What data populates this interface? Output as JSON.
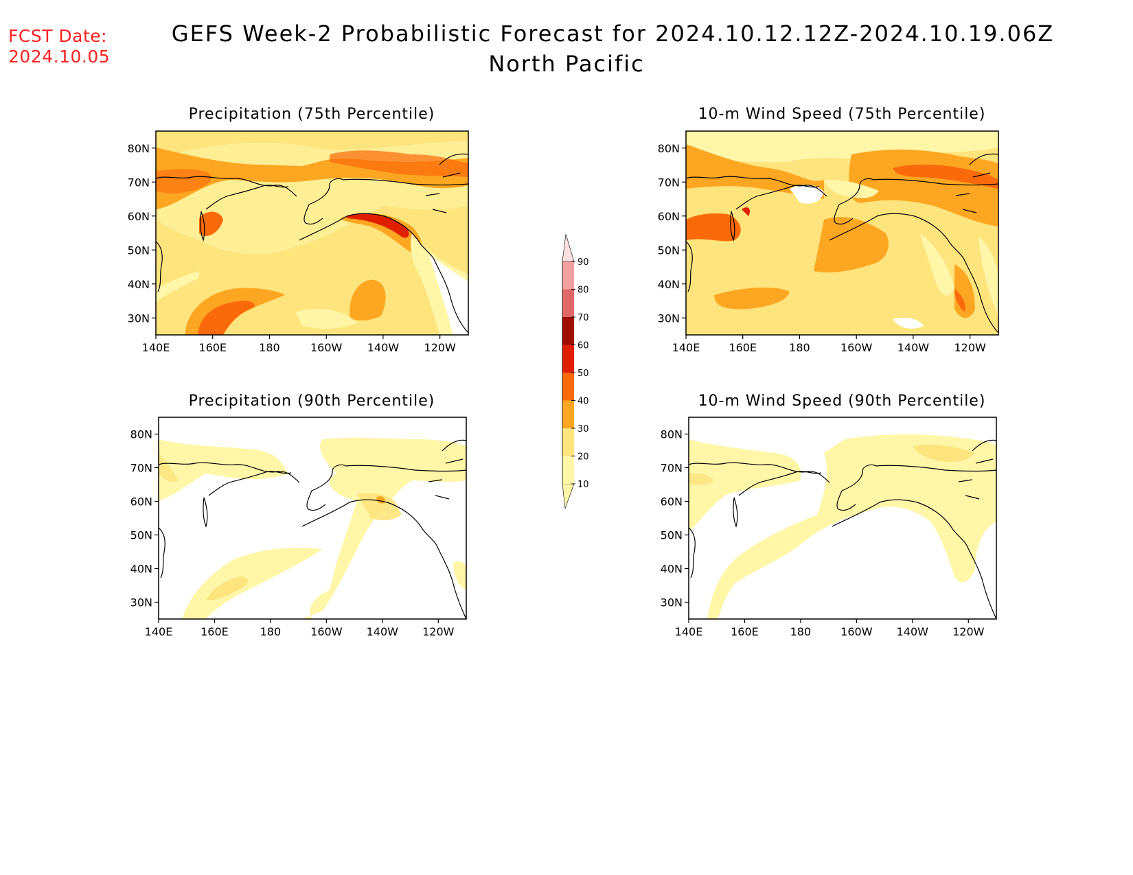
{
  "fcst": {
    "label": "FCST Date:",
    "date": "2024.10.05"
  },
  "title": {
    "line1": "GEFS Week-2 Probabilistic Forecast for 2024.10.12.12Z-2024.10.19.06Z",
    "line2": "North Pacific"
  },
  "colorbar": {
    "levels": [
      "10",
      "20",
      "30",
      "40",
      "50",
      "60",
      "70",
      "80",
      "90"
    ],
    "colors": [
      "#fff6a8",
      "#fde47c",
      "#fca622",
      "#fb6a0a",
      "#e01f00",
      "#a00c00",
      "#e06868",
      "#f4a0a0",
      "#fce0e0"
    ]
  },
  "axes": {
    "x_ticks": [
      "140E",
      "160E",
      "180",
      "160W",
      "140W",
      "120W"
    ],
    "y_ticks": [
      "80N",
      "70N",
      "60N",
      "50N",
      "40N",
      "30N"
    ]
  },
  "panels": [
    {
      "title": "Precipitation (75th Percentile)"
    },
    {
      "title": "10-m Wind Speed (75th Percentile)"
    },
    {
      "title": "Precipitation (90th Percentile)"
    },
    {
      "title": "10-m Wind Speed (90th Percentile)"
    }
  ]
}
